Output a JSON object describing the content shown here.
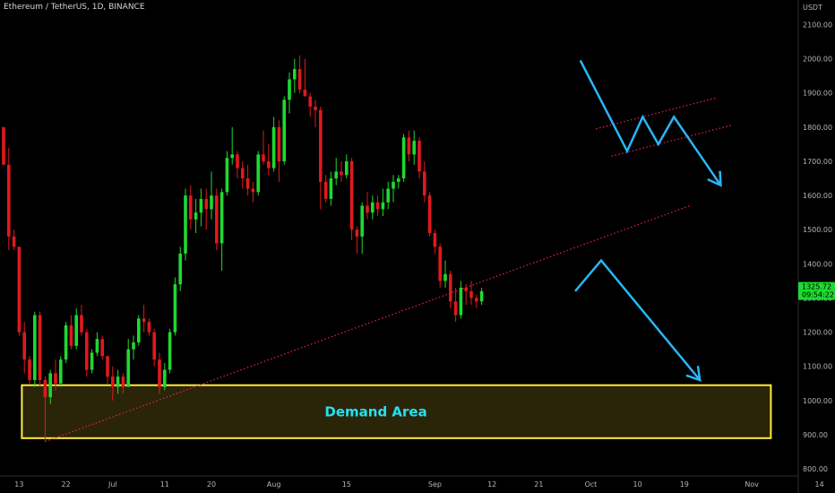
{
  "header": {
    "symbol_title": "Ethereum / TetherUS, 1D, BINANCE",
    "currency": "USDT"
  },
  "colors": {
    "background": "#000000",
    "up": "#1ed930",
    "down": "#e0191d",
    "trendline": "#e91e63",
    "demand_border": "#ffeb3b",
    "demand_fill": "#2a2508",
    "arrow": "#29b6f6",
    "axis_text": "#b2b5be",
    "price_badge": "#1ed930"
  },
  "price_badge": {
    "price": "1325.72",
    "countdown": "09:54:22"
  },
  "annotations": {
    "demand_label": "Demand Area"
  },
  "chart_data": {
    "type": "candlestick",
    "title": "Ethereum / TetherUS, 1D, BINANCE",
    "y_axis_label": "USDT",
    "ylim": [
      782,
      2172
    ],
    "y_ticks": [
      "2100.00",
      "2000.00",
      "1900.00",
      "1800.00",
      "1700.00",
      "1600.00",
      "1500.00",
      "1400.00",
      "1300.00",
      "1200.00",
      "1100.00",
      "1000.00",
      "900.00",
      "800.00"
    ],
    "x_ticks": [
      "13",
      "22",
      "Jul",
      "11",
      "20",
      "Aug",
      "15",
      "Sep",
      "12",
      "21",
      "Oct",
      "10",
      "19",
      "Nov",
      "14"
    ],
    "date_range": [
      "2022-06-10",
      "2022-09-26"
    ],
    "candles": [
      [
        1800,
        1800,
        1690,
        1690
      ],
      [
        1690,
        1740,
        1440,
        1480
      ],
      [
        1480,
        1500,
        1440,
        1450
      ],
      [
        1450,
        1450,
        1190,
        1200
      ],
      [
        1200,
        1230,
        1080,
        1120
      ],
      [
        1120,
        1130,
        1050,
        1060
      ],
      [
        1060,
        1260,
        1040,
        1250
      ],
      [
        1250,
        1260,
        1040,
        1060
      ],
      [
        1060,
        1070,
        880,
        1010
      ],
      [
        1010,
        1090,
        990,
        1080
      ],
      [
        1080,
        1120,
        1030,
        1050
      ],
      [
        1050,
        1130,
        1040,
        1120
      ],
      [
        1120,
        1230,
        1110,
        1220
      ],
      [
        1220,
        1250,
        1150,
        1160
      ],
      [
        1160,
        1270,
        1150,
        1250
      ],
      [
        1250,
        1280,
        1190,
        1200
      ],
      [
        1200,
        1210,
        1070,
        1090
      ],
      [
        1090,
        1150,
        1080,
        1140
      ],
      [
        1140,
        1200,
        1130,
        1180
      ],
      [
        1180,
        1190,
        1120,
        1130
      ],
      [
        1130,
        1130,
        1050,
        1070
      ],
      [
        1070,
        1100,
        1000,
        1040
      ],
      [
        1040,
        1090,
        1020,
        1070
      ],
      [
        1070,
        1080,
        1020,
        1040
      ],
      [
        1040,
        1180,
        1040,
        1150
      ],
      [
        1150,
        1190,
        1120,
        1170
      ],
      [
        1170,
        1250,
        1160,
        1240
      ],
      [
        1240,
        1280,
        1200,
        1230
      ],
      [
        1230,
        1240,
        1190,
        1200
      ],
      [
        1200,
        1210,
        1100,
        1120
      ],
      [
        1120,
        1140,
        1020,
        1040
      ],
      [
        1040,
        1110,
        1030,
        1090
      ],
      [
        1090,
        1210,
        1080,
        1200
      ],
      [
        1200,
        1360,
        1190,
        1340
      ],
      [
        1340,
        1450,
        1320,
        1430
      ],
      [
        1430,
        1620,
        1410,
        1600
      ],
      [
        1600,
        1630,
        1500,
        1530
      ],
      [
        1530,
        1590,
        1490,
        1550
      ],
      [
        1550,
        1620,
        1510,
        1590
      ],
      [
        1590,
        1620,
        1500,
        1560
      ],
      [
        1560,
        1670,
        1530,
        1600
      ],
      [
        1600,
        1620,
        1440,
        1460
      ],
      [
        1460,
        1620,
        1380,
        1610
      ],
      [
        1610,
        1730,
        1600,
        1710
      ],
      [
        1710,
        1800,
        1690,
        1720
      ],
      [
        1720,
        1730,
        1650,
        1680
      ],
      [
        1680,
        1700,
        1620,
        1650
      ],
      [
        1650,
        1690,
        1600,
        1620
      ],
      [
        1620,
        1640,
        1580,
        1610
      ],
      [
        1610,
        1730,
        1600,
        1720
      ],
      [
        1720,
        1790,
        1690,
        1700
      ],
      [
        1700,
        1750,
        1660,
        1680
      ],
      [
        1680,
        1830,
        1670,
        1800
      ],
      [
        1800,
        1820,
        1640,
        1700
      ],
      [
        1700,
        1890,
        1690,
        1880
      ],
      [
        1880,
        1960,
        1840,
        1940
      ],
      [
        1940,
        2000,
        1900,
        1970
      ],
      [
        1970,
        2010,
        1900,
        1910
      ],
      [
        1910,
        2000,
        1890,
        1890
      ],
      [
        1890,
        1900,
        1830,
        1860
      ],
      [
        1860,
        1880,
        1800,
        1850
      ],
      [
        1850,
        1860,
        1560,
        1640
      ],
      [
        1640,
        1660,
        1580,
        1590
      ],
      [
        1590,
        1670,
        1570,
        1650
      ],
      [
        1650,
        1710,
        1630,
        1670
      ],
      [
        1670,
        1700,
        1640,
        1660
      ],
      [
        1660,
        1720,
        1650,
        1700
      ],
      [
        1700,
        1710,
        1470,
        1500
      ],
      [
        1500,
        1510,
        1430,
        1480
      ],
      [
        1480,
        1580,
        1430,
        1570
      ],
      [
        1570,
        1610,
        1530,
        1550
      ],
      [
        1550,
        1600,
        1530,
        1580
      ],
      [
        1580,
        1600,
        1540,
        1560
      ],
      [
        1560,
        1620,
        1540,
        1580
      ],
      [
        1580,
        1640,
        1560,
        1620
      ],
      [
        1620,
        1660,
        1580,
        1640
      ],
      [
        1640,
        1660,
        1620,
        1650
      ],
      [
        1650,
        1780,
        1640,
        1770
      ],
      [
        1770,
        1790,
        1700,
        1720
      ],
      [
        1720,
        1790,
        1690,
        1760
      ],
      [
        1760,
        1770,
        1650,
        1670
      ],
      [
        1670,
        1700,
        1580,
        1600
      ],
      [
        1600,
        1610,
        1480,
        1490
      ],
      [
        1490,
        1500,
        1430,
        1450
      ],
      [
        1450,
        1460,
        1330,
        1350
      ],
      [
        1350,
        1410,
        1330,
        1370
      ],
      [
        1370,
        1380,
        1270,
        1290
      ],
      [
        1290,
        1330,
        1230,
        1250
      ],
      [
        1250,
        1350,
        1240,
        1330
      ],
      [
        1330,
        1340,
        1280,
        1320
      ],
      [
        1320,
        1350,
        1280,
        1300
      ],
      [
        1300,
        1310,
        1270,
        1290
      ],
      [
        1290,
        1330,
        1280,
        1320
      ]
    ],
    "trendline": [
      {
        "date": "2022-06-18",
        "price": 880
      },
      {
        "date": "2022-10-20",
        "price": 1570
      }
    ],
    "trendline_style": "dotted",
    "demand_zone": {
      "from": "2022-06-13",
      "to": "2022-11-05",
      "low": 890,
      "high": 1045,
      "label": "Demand Area"
    },
    "projection_arrows": [
      {
        "name": "upper-scenario",
        "path": [
          [
            "2022-09-29",
            1995
          ],
          [
            "2022-10-08",
            1730
          ],
          [
            "2022-10-11",
            1830
          ],
          [
            "2022-10-14",
            1750
          ],
          [
            "2022-10-17",
            1830
          ],
          [
            "2022-10-26",
            1630
          ]
        ]
      },
      {
        "name": "lower-scenario",
        "path": [
          [
            "2022-09-28",
            1320
          ],
          [
            "2022-10-03",
            1410
          ],
          [
            "2022-10-22",
            1060
          ]
        ]
      }
    ],
    "channel_lines": [
      [
        [
          "2022-10-02",
          1795
        ],
        [
          "2022-10-25",
          1885
        ]
      ],
      [
        [
          "2022-10-05",
          1715
        ],
        [
          "2022-10-28",
          1805
        ]
      ]
    ],
    "last_price": 1325.72
  }
}
